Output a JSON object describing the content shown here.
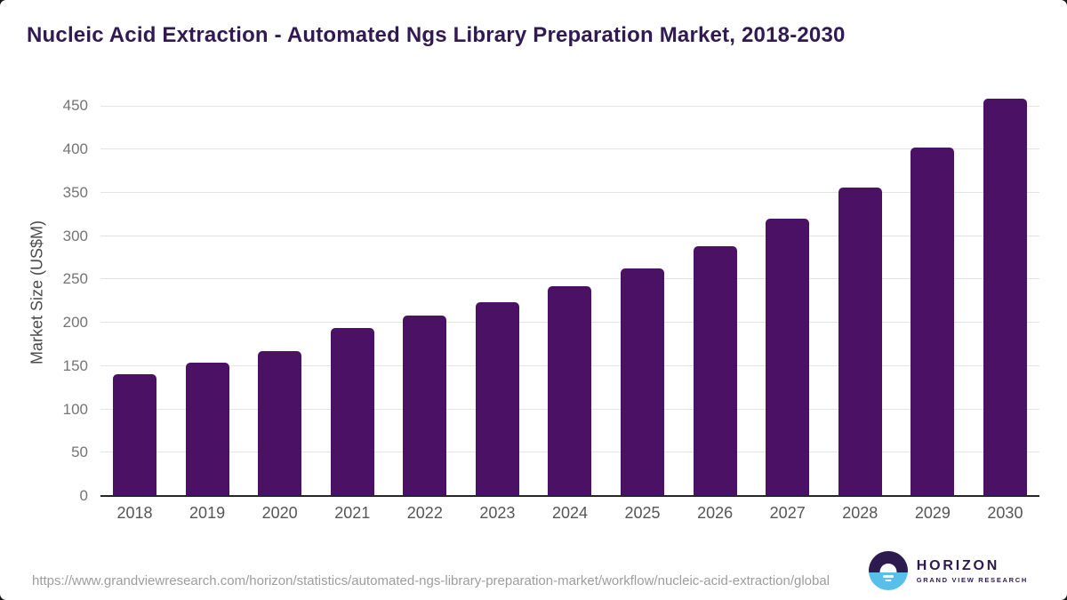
{
  "title": "Nucleic Acid Extraction - Automated Ngs Library Preparation Market, 2018-2030",
  "chart_data": {
    "type": "bar",
    "title": "Nucleic Acid Extraction - Automated Ngs Library Preparation Market, 2018-2030",
    "categories": [
      "2018",
      "2019",
      "2020",
      "2021",
      "2022",
      "2023",
      "2024",
      "2025",
      "2026",
      "2027",
      "2028",
      "2029",
      "2030"
    ],
    "values": [
      141,
      154,
      167,
      194,
      208,
      224,
      242,
      263,
      288,
      320,
      356,
      402,
      459
    ],
    "xlabel": "",
    "ylabel": "Market Size (US$M)",
    "yticks": [
      0,
      50,
      100,
      150,
      200,
      250,
      300,
      350,
      400,
      450
    ],
    "ylim": [
      0,
      470
    ],
    "grid": true,
    "legend": false,
    "bar_color": "#4a1164"
  },
  "footer": {
    "source_url": "https://www.grandviewresearch.com/horizon/statistics/automated-ngs-library-preparation-market/workflow/nucleic-acid-extraction/global",
    "logo": {
      "name": "HORIZON",
      "tagline": "GRAND VIEW RESEARCH"
    }
  },
  "colors": {
    "bar": "#4a1164",
    "title_text": "#311952",
    "logo_purple": "#2d1a4e",
    "logo_blue": "#57c0ea",
    "axis_label": "#757575",
    "gridline": "#e4e4e4"
  }
}
